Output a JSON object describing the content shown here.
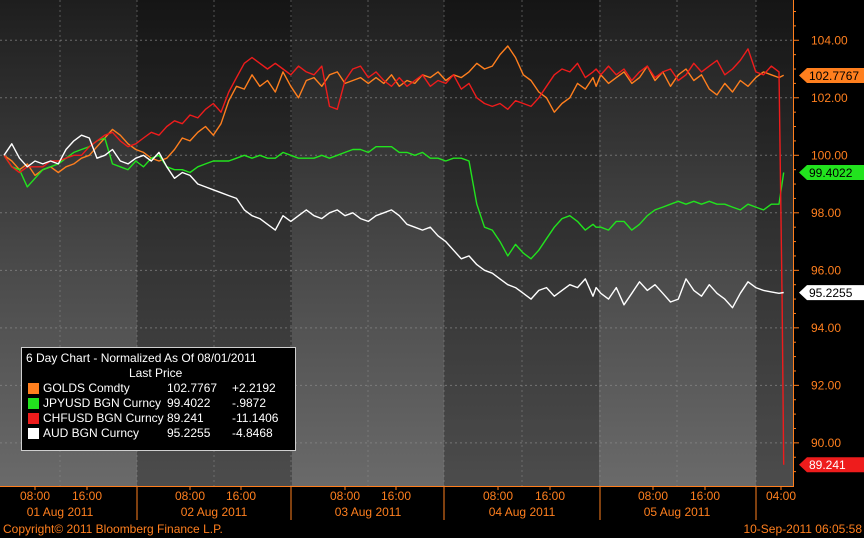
{
  "chart_data": {
    "type": "line",
    "title": "6 Day Chart - Normalized As Of 08/01/2011",
    "legend_header": "Last Price",
    "legend_position": "bottom-left",
    "ylim": [
      88.5,
      105.4
    ],
    "y_ticks": [
      "90.00",
      "92.00",
      "94.00",
      "96.00",
      "98.00",
      "100.00",
      "102.00",
      "104.00"
    ],
    "y_tick_values": [
      90,
      92,
      94,
      96,
      98,
      100,
      102,
      104
    ],
    "x_range": [
      0,
      6
    ],
    "days": [
      {
        "date": "01 Aug 2011",
        "ticks": [
          "08:00",
          "16:00"
        ]
      },
      {
        "date": "02 Aug 2011",
        "ticks": [
          "08:00",
          "16:00"
        ]
      },
      {
        "date": "03 Aug 2011",
        "ticks": [
          "08:00",
          "16:00"
        ]
      },
      {
        "date": "04 Aug 2011",
        "ticks": [
          "08:00",
          "16:00"
        ]
      },
      {
        "date": "05 Aug 2011",
        "ticks": [
          "08:00",
          "16:00"
        ]
      },
      {
        "date": "",
        "ticks": [
          "04:00"
        ]
      }
    ],
    "grid": true,
    "series": [
      {
        "name": "GOLDS Comdty",
        "color": "#ff7f1e",
        "last": "102.7767",
        "change": "+2.2192",
        "x": [
          0,
          0.05,
          0.1,
          0.15,
          0.2,
          0.25,
          0.3,
          0.35,
          0.4,
          0.45,
          0.5,
          0.55,
          0.6,
          0.65,
          0.7,
          0.75,
          0.8,
          0.85,
          0.9,
          0.95,
          1,
          1.05,
          1.1,
          1.15,
          1.2,
          1.25,
          1.3,
          1.35,
          1.4,
          1.45,
          1.5,
          1.55,
          1.6,
          1.65,
          1.7,
          1.75,
          1.8,
          1.85,
          1.9,
          1.95,
          2,
          2.05,
          2.1,
          2.15,
          2.2,
          2.25,
          2.3,
          2.35,
          2.4,
          2.45,
          2.5,
          2.55,
          2.6,
          2.65,
          2.7,
          2.75,
          2.8,
          2.85,
          2.9,
          2.95,
          3,
          3.05,
          3.1,
          3.15,
          3.2,
          3.25,
          3.3,
          3.35,
          3.4,
          3.45,
          3.5,
          3.55,
          3.6,
          3.65,
          3.7,
          3.75,
          3.8,
          3.82,
          3.85,
          3.9,
          3.95,
          4,
          4.05,
          4.1,
          4.15,
          4.2,
          4.25,
          4.3,
          4.35,
          4.4,
          4.45,
          4.5,
          4.55,
          4.6,
          4.65,
          4.7,
          4.75,
          4.8,
          4.85,
          4.9,
          4.95,
          5,
          5.03
        ],
        "y": [
          100,
          99.8,
          99.5,
          99.7,
          99.3,
          99.5,
          99.6,
          99.4,
          99.6,
          99.7,
          99.9,
          100.0,
          100.3,
          100.6,
          100.9,
          100.7,
          100.4,
          100.2,
          100.1,
          99.9,
          99.8,
          99.9,
          100.2,
          100.6,
          100.5,
          100.8,
          101.0,
          100.7,
          101.1,
          101.9,
          102.4,
          102.3,
          102.8,
          102.4,
          102.6,
          102.2,
          102.9,
          102.4,
          102.0,
          102.6,
          102.7,
          102.4,
          102.8,
          102.9,
          102.5,
          102.6,
          102.7,
          102.5,
          102.7,
          102.5,
          102.8,
          102.4,
          102.6,
          102.5,
          102.8,
          102.7,
          102.9,
          102.6,
          102.8,
          102.7,
          102.9,
          103.2,
          103.0,
          103.1,
          103.5,
          103.8,
          103.4,
          102.8,
          102.6,
          102.2,
          102.0,
          101.5,
          101.8,
          102.0,
          102.5,
          102.3,
          102.7,
          102.4,
          102.8,
          102.5,
          102.7,
          102.9,
          102.5,
          102.7,
          103.1,
          102.6,
          102.9,
          102.4,
          102.8,
          103.0,
          102.6,
          102.8,
          102.3,
          102.1,
          102.5,
          102.2,
          102.6,
          102.4,
          102.7,
          102.9,
          102.8,
          102.7,
          102.78
        ]
      },
      {
        "name": "JPYUSD BGN Curncy",
        "color": "#22e31e",
        "last": "99.4022",
        "change": "-.9872",
        "x": [
          0,
          0.05,
          0.1,
          0.15,
          0.2,
          0.25,
          0.3,
          0.35,
          0.4,
          0.45,
          0.5,
          0.55,
          0.6,
          0.65,
          0.7,
          0.75,
          0.8,
          0.85,
          0.9,
          0.95,
          1,
          1.05,
          1.1,
          1.15,
          1.2,
          1.25,
          1.3,
          1.35,
          1.4,
          1.45,
          1.5,
          1.55,
          1.6,
          1.65,
          1.7,
          1.75,
          1.8,
          1.85,
          1.9,
          1.95,
          2,
          2.05,
          2.1,
          2.15,
          2.2,
          2.25,
          2.3,
          2.35,
          2.4,
          2.45,
          2.5,
          2.55,
          2.6,
          2.65,
          2.7,
          2.75,
          2.8,
          2.85,
          2.9,
          2.95,
          3,
          3.05,
          3.1,
          3.15,
          3.2,
          3.25,
          3.3,
          3.35,
          3.4,
          3.45,
          3.5,
          3.55,
          3.6,
          3.65,
          3.7,
          3.75,
          3.8,
          3.82,
          3.85,
          3.9,
          3.95,
          4,
          4.05,
          4.1,
          4.15,
          4.2,
          4.25,
          4.3,
          4.35,
          4.4,
          4.45,
          4.5,
          4.55,
          4.6,
          4.65,
          4.7,
          4.75,
          4.8,
          4.85,
          4.9,
          4.95,
          5,
          5.03
        ],
        "y": [
          100,
          99.6,
          99.5,
          98.9,
          99.2,
          99.5,
          99.6,
          99.7,
          99.9,
          100.1,
          100.2,
          100.3,
          100.5,
          100.6,
          99.7,
          99.6,
          99.5,
          99.8,
          99.6,
          99.9,
          100.0,
          99.6,
          99.5,
          99.5,
          99.4,
          99.6,
          99.7,
          99.8,
          99.8,
          99.8,
          99.9,
          100.0,
          99.9,
          100.0,
          99.9,
          99.9,
          100.1,
          100.0,
          99.9,
          99.9,
          99.9,
          100.0,
          99.9,
          100.0,
          100.1,
          100.2,
          100.2,
          100.1,
          100.3,
          100.3,
          100.3,
          100.1,
          100.1,
          100.0,
          100.1,
          99.9,
          99.9,
          99.8,
          99.9,
          99.9,
          99.8,
          98.3,
          97.5,
          97.4,
          97.0,
          96.5,
          96.9,
          96.6,
          96.4,
          96.7,
          97.1,
          97.5,
          97.8,
          97.9,
          97.7,
          97.4,
          97.6,
          97.5,
          97.5,
          97.4,
          97.7,
          97.7,
          97.4,
          97.6,
          97.9,
          98.1,
          98.2,
          98.3,
          98.4,
          98.3,
          98.4,
          98.3,
          98.4,
          98.3,
          98.3,
          98.2,
          98.1,
          98.3,
          98.2,
          98.1,
          98.3,
          98.3,
          99.4
        ]
      },
      {
        "name": "CHFUSD BGN Curncy",
        "color": "#ee1c1c",
        "last": "89.241",
        "change": "-11.1406",
        "x": [
          0,
          0.05,
          0.1,
          0.15,
          0.2,
          0.25,
          0.3,
          0.35,
          0.4,
          0.45,
          0.5,
          0.55,
          0.6,
          0.65,
          0.7,
          0.75,
          0.8,
          0.85,
          0.9,
          0.95,
          1,
          1.05,
          1.1,
          1.15,
          1.2,
          1.25,
          1.3,
          1.35,
          1.4,
          1.45,
          1.5,
          1.55,
          1.6,
          1.65,
          1.7,
          1.75,
          1.8,
          1.85,
          1.9,
          1.95,
          2,
          2.05,
          2.1,
          2.15,
          2.2,
          2.25,
          2.3,
          2.35,
          2.4,
          2.45,
          2.5,
          2.55,
          2.6,
          2.65,
          2.7,
          2.75,
          2.8,
          2.85,
          2.9,
          2.95,
          3,
          3.05,
          3.1,
          3.15,
          3.2,
          3.25,
          3.3,
          3.35,
          3.4,
          3.45,
          3.5,
          3.55,
          3.6,
          3.65,
          3.7,
          3.75,
          3.8,
          3.82,
          3.85,
          3.9,
          3.95,
          4,
          4.05,
          4.1,
          4.15,
          4.2,
          4.25,
          4.3,
          4.35,
          4.4,
          4.45,
          4.5,
          4.55,
          4.6,
          4.65,
          4.7,
          4.75,
          4.8,
          4.85,
          4.9,
          4.95,
          5,
          5.02,
          5.03
        ],
        "y": [
          100,
          99.6,
          99.4,
          99.6,
          99.6,
          99.6,
          99.8,
          99.8,
          99.9,
          100.0,
          100.0,
          100.3,
          100.5,
          100.7,
          100.8,
          100.5,
          100.3,
          100.4,
          100.6,
          100.8,
          100.7,
          101.0,
          101.2,
          101.1,
          101.4,
          101.3,
          101.6,
          101.8,
          101.5,
          102.2,
          102.7,
          103.2,
          103.4,
          103.2,
          103.0,
          103.2,
          103.0,
          102.8,
          103.1,
          102.9,
          102.8,
          103.1,
          101.7,
          101.6,
          102.6,
          103.0,
          103.1,
          102.7,
          102.9,
          102.6,
          102.4,
          102.7,
          102.4,
          102.6,
          102.8,
          102.4,
          102.6,
          102.5,
          102.8,
          102.3,
          102.5,
          102.0,
          101.8,
          101.7,
          101.8,
          101.6,
          101.9,
          101.8,
          101.7,
          102.0,
          102.4,
          102.8,
          103.0,
          102.9,
          103.2,
          102.7,
          102.9,
          103.0,
          102.8,
          103.1,
          102.8,
          103.0,
          102.6,
          102.9,
          103.1,
          102.7,
          102.9,
          103.0,
          102.6,
          102.8,
          103.2,
          102.9,
          103.1,
          103.3,
          102.8,
          103.0,
          103.3,
          103.7,
          102.9,
          102.8,
          103.1,
          102.9,
          95.0,
          89.24
        ]
      },
      {
        "name": "AUD BGN Curncy",
        "color": "#ffffff",
        "last": "95.2255",
        "change": "-4.8468",
        "x": [
          0,
          0.05,
          0.1,
          0.15,
          0.2,
          0.25,
          0.3,
          0.35,
          0.4,
          0.45,
          0.5,
          0.55,
          0.6,
          0.65,
          0.7,
          0.75,
          0.8,
          0.85,
          0.9,
          0.95,
          1,
          1.05,
          1.1,
          1.15,
          1.2,
          1.25,
          1.3,
          1.35,
          1.4,
          1.45,
          1.5,
          1.55,
          1.6,
          1.65,
          1.7,
          1.75,
          1.8,
          1.85,
          1.9,
          1.95,
          2,
          2.05,
          2.1,
          2.15,
          2.2,
          2.25,
          2.3,
          2.35,
          2.4,
          2.45,
          2.5,
          2.55,
          2.6,
          2.65,
          2.7,
          2.75,
          2.8,
          2.85,
          2.9,
          2.95,
          3,
          3.05,
          3.1,
          3.15,
          3.2,
          3.25,
          3.3,
          3.35,
          3.4,
          3.45,
          3.5,
          3.55,
          3.6,
          3.65,
          3.7,
          3.75,
          3.8,
          3.82,
          3.85,
          3.9,
          3.95,
          4,
          4.05,
          4.1,
          4.15,
          4.2,
          4.25,
          4.3,
          4.35,
          4.4,
          4.45,
          4.5,
          4.55,
          4.6,
          4.65,
          4.7,
          4.75,
          4.8,
          4.85,
          4.9,
          4.95,
          5,
          5.03
        ],
        "y": [
          100,
          100.4,
          99.9,
          99.6,
          99.8,
          99.7,
          99.8,
          99.7,
          100.2,
          100.5,
          100.7,
          100.6,
          99.9,
          100.0,
          100.2,
          99.8,
          99.7,
          99.9,
          100.0,
          99.8,
          100.1,
          99.6,
          99.2,
          99.4,
          99.3,
          99.0,
          98.9,
          98.8,
          98.7,
          98.6,
          98.5,
          98.1,
          97.9,
          97.8,
          97.6,
          97.4,
          97.9,
          97.7,
          97.9,
          98.1,
          97.9,
          97.8,
          98.0,
          98.1,
          97.9,
          98.0,
          97.8,
          97.7,
          97.9,
          98.0,
          98.1,
          97.9,
          97.6,
          97.5,
          97.4,
          97.5,
          97.2,
          97.0,
          96.7,
          96.4,
          96.5,
          96.2,
          96.0,
          95.9,
          95.7,
          95.5,
          95.4,
          95.2,
          95.0,
          95.3,
          95.4,
          95.1,
          95.3,
          95.5,
          95.4,
          95.7,
          95.1,
          95.4,
          95.2,
          95.0,
          95.4,
          94.8,
          95.2,
          95.6,
          95.3,
          95.5,
          95.2,
          94.9,
          95.0,
          95.7,
          95.3,
          95.1,
          95.5,
          95.2,
          95.0,
          94.7,
          95.2,
          95.6,
          95.4,
          95.3,
          95.25,
          95.2,
          95.23
        ]
      }
    ]
  },
  "footer": {
    "copyright": "Copyright© 2011 Bloomberg Finance L.P.",
    "timestamp": "10-Sep-2011 06:05:58"
  }
}
